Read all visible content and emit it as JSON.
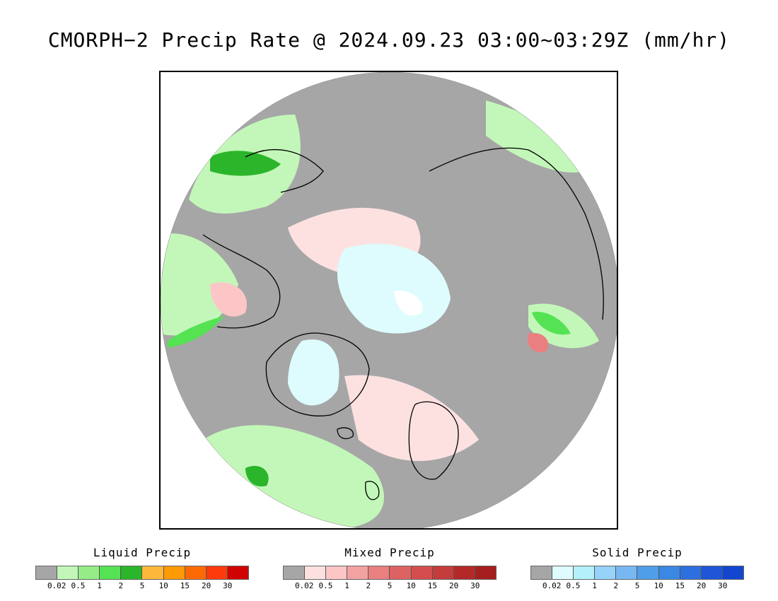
{
  "title": "CMORPH−2 Precip Rate @ 2024.09.23 03:00~03:29Z (mm/hr)",
  "map": {
    "no_precip_color": "#a6a6a6",
    "coastline_color": "#000000"
  },
  "legends": [
    {
      "title": "Liquid Precip",
      "colors": [
        "#a6a6a6",
        "#c3f7b9",
        "#96ec87",
        "#55e354",
        "#2bb52b",
        "#fdb83c",
        "#fd9a06",
        "#fd6a05",
        "#fd3a0c",
        "#d00303"
      ],
      "ticks": [
        "0.02",
        "0.5",
        "1",
        "2",
        "5",
        "10",
        "15",
        "20",
        "30"
      ]
    },
    {
      "title": "Mixed Precip",
      "colors": [
        "#a6a6a6",
        "#fde1e1",
        "#fcc6c6",
        "#f3a2a2",
        "#ea7f7f",
        "#de6262",
        "#d44e4e",
        "#c53c3c",
        "#b32929",
        "#a51f1f"
      ],
      "ticks": [
        "0.02",
        "0.5",
        "1",
        "2",
        "5",
        "10",
        "15",
        "20",
        "30"
      ]
    },
    {
      "title": "Solid Precip",
      "colors": [
        "#a6a6a6",
        "#defcfd",
        "#b4f0fb",
        "#96d2fa",
        "#78b8f2",
        "#4f9ee9",
        "#3a87e4",
        "#2e6fe0",
        "#1f56d8",
        "#1346cf"
      ],
      "ticks": [
        "0.02",
        "0.5",
        "1",
        "2",
        "5",
        "10",
        "15",
        "20",
        "30"
      ]
    }
  ]
}
